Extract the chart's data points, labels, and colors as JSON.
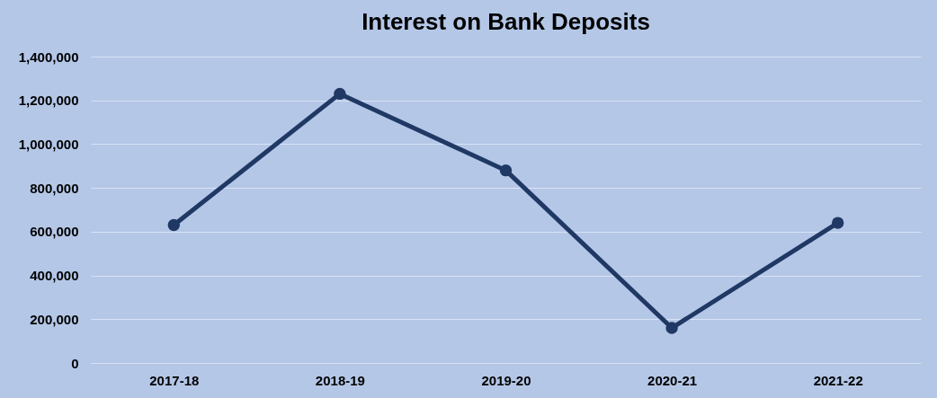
{
  "chart_data": {
    "type": "line",
    "title": "Interest on Bank Deposits",
    "categories": [
      "2017-18",
      "2018-19",
      "2019-20",
      "2020-21",
      "2021-22"
    ],
    "series": [
      {
        "color": "#203864",
        "values": [
          630000,
          1230000,
          880000,
          160000,
          640000
        ]
      }
    ],
    "ylim": [
      0,
      1400000
    ],
    "yticks": [
      {
        "value": 0,
        "label": "0"
      },
      {
        "value": 200000,
        "label": "200,000"
      },
      {
        "value": 400000,
        "label": "400,000"
      },
      {
        "value": 600000,
        "label": "600,000"
      },
      {
        "value": 800000,
        "label": "800,000"
      },
      {
        "value": 1000000,
        "label": "1,000,000"
      },
      {
        "value": 1200000,
        "label": "1,200,000"
      },
      {
        "value": 1400000,
        "label": "1,400,000"
      }
    ],
    "grid": "y",
    "marker": "circle",
    "line_style": "solid"
  }
}
